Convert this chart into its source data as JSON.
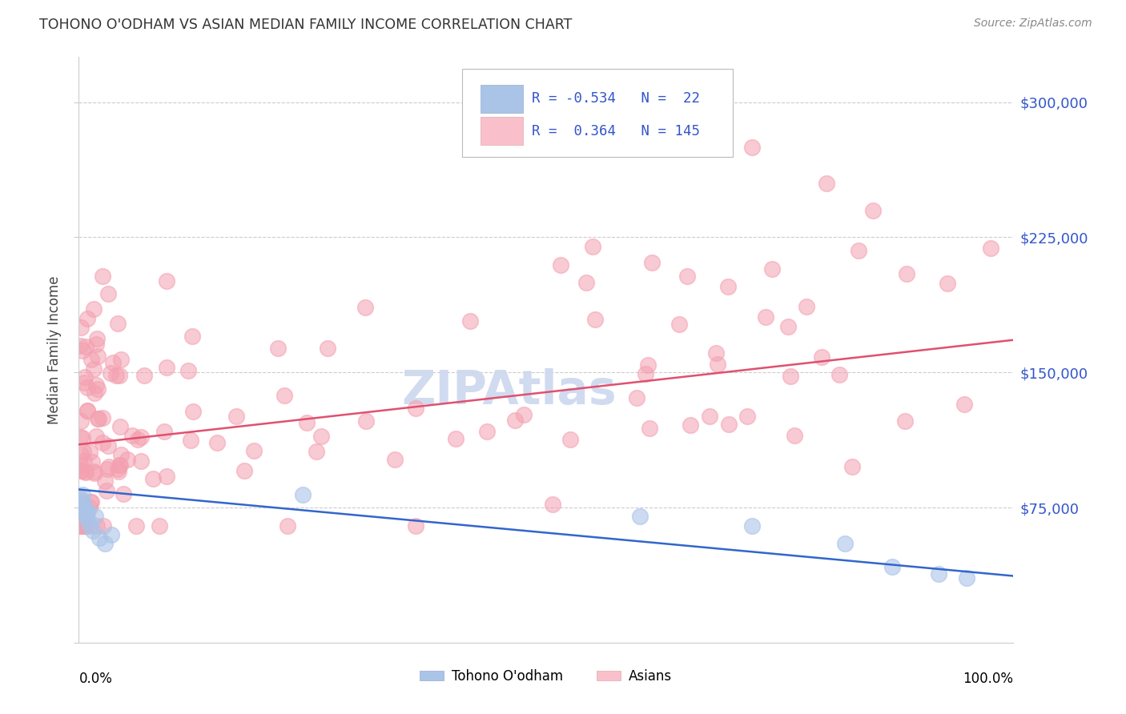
{
  "title": "TOHONO O'ODHAM VS ASIAN MEDIAN FAMILY INCOME CORRELATION CHART",
  "source": "Source: ZipAtlas.com",
  "ylabel": "Median Family Income",
  "yticks": [
    0,
    75000,
    150000,
    225000,
    300000
  ],
  "ylim": [
    0,
    325000
  ],
  "xlim": [
    0.0,
    1.0
  ],
  "blue_color": "#aac4e8",
  "pink_color": "#f4a0b0",
  "blue_face_color": "#aac4e8",
  "pink_face_color": "#f9c0cc",
  "blue_line_color": "#3366cc",
  "pink_line_color": "#e05070",
  "label_color": "#3355cc",
  "background_color": "#ffffff",
  "watermark_color": "#ccd8ee",
  "blue_line_y0": 85000,
  "blue_line_y1": 37000,
  "pink_line_y0": 110000,
  "pink_line_y1": 168000
}
